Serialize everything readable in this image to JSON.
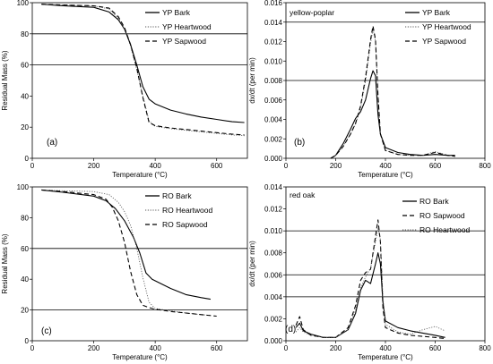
{
  "chart_data": [
    {
      "type": "line",
      "panel_label": "(a)",
      "xlabel": "Temperature (°C)",
      "ylabel": "Residual Mass (%)",
      "inset_label": "",
      "xlim": [
        0,
        700
      ],
      "ylim": [
        0,
        100
      ],
      "xticks": [
        "0",
        "200",
        "400",
        "600"
      ],
      "xtick_values": [
        0,
        200,
        400,
        600
      ],
      "yticks": [
        "0",
        "20",
        "40",
        "60",
        "80",
        "100"
      ],
      "ytick_values": [
        0,
        20,
        40,
        60,
        80,
        100
      ],
      "hlines": [
        60,
        80
      ],
      "legend_position": "top-right",
      "series": [
        {
          "name": "YP Bark",
          "style": "solid",
          "x": [
            30,
            100,
            200,
            250,
            280,
            300,
            320,
            340,
            360,
            380,
            400,
            450,
            500,
            550,
            600,
            650,
            690
          ],
          "y": [
            99,
            98,
            97,
            94,
            89,
            83,
            73,
            60,
            46,
            38,
            35,
            31,
            28.5,
            26.5,
            25,
            23.5,
            23
          ]
        },
        {
          "name": "YP Heartwood",
          "style": "dotted",
          "x": [
            30,
            100,
            200,
            250,
            280,
            300,
            320,
            340,
            360,
            380,
            400,
            450,
            500,
            550,
            600,
            650,
            690
          ],
          "y": [
            99,
            98.5,
            98,
            96,
            90,
            83,
            72,
            57,
            40,
            24,
            20.5,
            19,
            18,
            17,
            16,
            15,
            14.5
          ]
        },
        {
          "name": "YP Sapwood",
          "style": "dashed",
          "x": [
            30,
            100,
            200,
            250,
            280,
            300,
            320,
            340,
            360,
            380,
            400,
            450,
            500,
            550,
            600,
            650,
            690
          ],
          "y": [
            99,
            98.5,
            98,
            96.5,
            91,
            84,
            73,
            58,
            39,
            23,
            21,
            19.5,
            18.5,
            17.5,
            16.5,
            15.5,
            15
          ]
        }
      ]
    },
    {
      "type": "line",
      "panel_label": "(b)",
      "xlabel": "Temperature (°C)",
      "ylabel": "dx/dt (per min)",
      "inset_label": "yellow-poplar",
      "xlim": [
        0,
        800
      ],
      "ylim": [
        0,
        0.016
      ],
      "xticks": [
        "0",
        "200",
        "400",
        "600",
        "800"
      ],
      "xtick_values": [
        0,
        200,
        400,
        600,
        800
      ],
      "yticks": [
        "0.000",
        "0.002",
        "0.004",
        "0.006",
        "0.008",
        "0.010",
        "0.012",
        "0.014",
        "0.016"
      ],
      "ytick_values": [
        0,
        0.002,
        0.004,
        0.006,
        0.008,
        0.01,
        0.012,
        0.014,
        0.016
      ],
      "hlines": [
        0.008,
        0.014
      ],
      "legend_position": "top-right",
      "series": [
        {
          "name": "YP Bark",
          "style": "solid",
          "x": [
            180,
            200,
            230,
            260,
            280,
            300,
            320,
            340,
            350,
            360,
            370,
            380,
            400,
            450,
            500,
            550,
            600,
            650,
            680
          ],
          "y": [
            0,
            0.0003,
            0.0015,
            0.003,
            0.0041,
            0.0048,
            0.006,
            0.0082,
            0.009,
            0.0085,
            0.0045,
            0.0025,
            0.0011,
            0.0006,
            0.0004,
            0.0003,
            0.0004,
            0.0003,
            0.0003
          ]
        },
        {
          "name": "YP Heartwood",
          "style": "dotted",
          "x": [
            180,
            200,
            230,
            260,
            280,
            300,
            320,
            340,
            350,
            360,
            370,
            380,
            400,
            450,
            500,
            550,
            600,
            650,
            680
          ],
          "y": [
            0,
            0.0003,
            0.0012,
            0.0025,
            0.0035,
            0.0052,
            0.008,
            0.0118,
            0.0133,
            0.012,
            0.0065,
            0.0025,
            0.0008,
            0.0004,
            0.0003,
            0.0003,
            0.0007,
            0.0003,
            0.0002
          ]
        },
        {
          "name": "YP Sapwood",
          "style": "dashed",
          "x": [
            180,
            200,
            230,
            260,
            280,
            300,
            320,
            340,
            350,
            360,
            370,
            380,
            400,
            450,
            500,
            550,
            600,
            650,
            680
          ],
          "y": [
            0,
            0.0003,
            0.0012,
            0.0025,
            0.0036,
            0.0054,
            0.0083,
            0.0122,
            0.0136,
            0.0122,
            0.0065,
            0.0025,
            0.0008,
            0.0004,
            0.0003,
            0.0003,
            0.0006,
            0.0003,
            0.0002
          ]
        }
      ]
    },
    {
      "type": "line",
      "panel_label": "(c)",
      "xlabel": "Temperature (°C)",
      "ylabel": "Residual Mass (%)",
      "inset_label": "",
      "xlim": [
        0,
        700
      ],
      "ylim": [
        0,
        100
      ],
      "xticks": [
        "0",
        "200",
        "400",
        "600"
      ],
      "xtick_values": [
        0,
        200,
        400,
        600
      ],
      "yticks": [
        "0",
        "20",
        "40",
        "60",
        "80",
        "100"
      ],
      "ytick_values": [
        0,
        20,
        40,
        60,
        80,
        100
      ],
      "hlines": [
        20,
        60
      ],
      "legend_position": "top-right",
      "series": [
        {
          "name": "RO Bark",
          "style": "solid",
          "x": [
            30,
            100,
            200,
            240,
            270,
            300,
            330,
            350,
            370,
            390,
            420,
            450,
            500,
            550,
            580
          ],
          "y": [
            98,
            96.5,
            94,
            91,
            86,
            78,
            67,
            57,
            44,
            40,
            37,
            34,
            30,
            28,
            27
          ]
        },
        {
          "name": "RO Heartwood",
          "style": "dotted",
          "x": [
            30,
            100,
            200,
            250,
            280,
            300,
            320,
            340,
            360,
            380,
            400,
            450,
            500,
            550,
            580
          ],
          "y": [
            98,
            97.5,
            97,
            95,
            90,
            84,
            75,
            60,
            41,
            25,
            21,
            19.5,
            18,
            17,
            16.5
          ]
        },
        {
          "name": "RO Sapwood",
          "style": "dashed",
          "x": [
            30,
            100,
            200,
            240,
            260,
            280,
            300,
            320,
            340,
            360,
            380,
            400,
            450,
            500,
            550,
            600
          ],
          "y": [
            98,
            97,
            95,
            92,
            87,
            78,
            64,
            45,
            30,
            23,
            21.5,
            20.5,
            19,
            18,
            17,
            16
          ]
        }
      ]
    },
    {
      "type": "line",
      "panel_label": "(d)",
      "xlabel": "Temperature (°C)",
      "ylabel": "dx/dt (per min)",
      "inset_label": "red oak",
      "xlim": [
        0,
        800
      ],
      "ylim": [
        0,
        0.014
      ],
      "xticks": [
        "0",
        "200",
        "400",
        "600",
        "800"
      ],
      "xtick_values": [
        0,
        200,
        400,
        600,
        800
      ],
      "yticks": [
        "0.000",
        "0.002",
        "0.004",
        "0.006",
        "0.008",
        "0.010",
        "0.012",
        "0.014"
      ],
      "ytick_values": [
        0,
        0.002,
        0.004,
        0.006,
        0.008,
        0.01,
        0.012,
        0.014
      ],
      "hlines": [
        0.004,
        0.006,
        0.01
      ],
      "legend_position": "top-right",
      "series": [
        {
          "name": "RO Bark",
          "style": "solid",
          "x": [
            40,
            55,
            70,
            100,
            150,
            200,
            250,
            280,
            300,
            320,
            340,
            360,
            370,
            380,
            390,
            400,
            450,
            500,
            550,
            600,
            640
          ],
          "y": [
            0.0012,
            0.0016,
            0.0009,
            0.0006,
            0.0003,
            0.0003,
            0.001,
            0.0025,
            0.0046,
            0.0055,
            0.0052,
            0.007,
            0.008,
            0.007,
            0.0035,
            0.0018,
            0.0012,
            0.0009,
            0.0007,
            0.0005,
            0.0003
          ]
        },
        {
          "name": "RO Sapwood",
          "style": "dashed",
          "x": [
            40,
            55,
            70,
            100,
            150,
            200,
            250,
            280,
            300,
            320,
            340,
            360,
            370,
            380,
            390,
            400,
            450,
            500,
            550,
            600,
            640
          ],
          "y": [
            0.0014,
            0.0022,
            0.001,
            0.0005,
            0.0003,
            0.0003,
            0.0012,
            0.0032,
            0.0055,
            0.0062,
            0.0065,
            0.0095,
            0.011,
            0.009,
            0.003,
            0.0012,
            0.0007,
            0.0005,
            0.0004,
            0.0003,
            0.0002
          ]
        },
        {
          "name": "RO Heartwood",
          "style": "dotted",
          "x": [
            40,
            55,
            70,
            100,
            150,
            200,
            250,
            280,
            300,
            320,
            340,
            360,
            370,
            380,
            390,
            400,
            450,
            500,
            550,
            600,
            640
          ],
          "y": [
            0.0008,
            0.0012,
            0.0008,
            0.0005,
            0.0003,
            0.0003,
            0.001,
            0.0028,
            0.0048,
            0.0058,
            0.0066,
            0.009,
            0.0102,
            0.0092,
            0.004,
            0.0015,
            0.0008,
            0.0006,
            0.001,
            0.0013,
            0.0009
          ]
        }
      ]
    }
  ]
}
